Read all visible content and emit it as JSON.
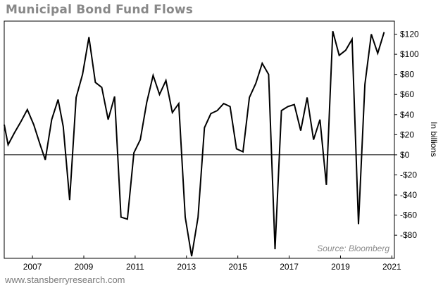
{
  "chart_data": {
    "type": "line",
    "title": "Municipal Bond Fund Flows",
    "ylabel": "In billions",
    "source": "Source: Bloomberg",
    "footer": "www.stansberryresearch.com",
    "xlim": [
      2005.9,
      2021.1
    ],
    "ylim": [
      -103,
      133
    ],
    "grid": false,
    "legend": "none",
    "line_color": "#000000",
    "x_ticks": [
      {
        "value": 2007,
        "label": "2007"
      },
      {
        "value": 2009,
        "label": "2009"
      },
      {
        "value": 2011,
        "label": "2011"
      },
      {
        "value": 2013,
        "label": "2013"
      },
      {
        "value": 2015,
        "label": "2015"
      },
      {
        "value": 2017,
        "label": "2017"
      },
      {
        "value": 2019,
        "label": "2019"
      },
      {
        "value": 2021,
        "label": "2021"
      }
    ],
    "y_ticks": [
      {
        "value": 120,
        "label": "$120"
      },
      {
        "value": 100,
        "label": "$100"
      },
      {
        "value": 80,
        "label": "$80"
      },
      {
        "value": 60,
        "label": "$60"
      },
      {
        "value": 40,
        "label": "$40"
      },
      {
        "value": 20,
        "label": "$20"
      },
      {
        "value": 0,
        "label": "$0"
      },
      {
        "value": -20,
        "label": "-$20"
      },
      {
        "value": -40,
        "label": "-$40"
      },
      {
        "value": -60,
        "label": "-$60"
      },
      {
        "value": -80,
        "label": "-$80"
      }
    ],
    "series": [
      {
        "points": [
          [
            2005.9,
            30
          ],
          [
            2006.05,
            10
          ],
          [
            2006.3,
            22
          ],
          [
            2006.55,
            33
          ],
          [
            2006.8,
            45
          ],
          [
            2007.05,
            30
          ],
          [
            2007.3,
            10
          ],
          [
            2007.5,
            -5
          ],
          [
            2007.75,
            35
          ],
          [
            2008.0,
            55
          ],
          [
            2008.2,
            28
          ],
          [
            2008.45,
            -45
          ],
          [
            2008.7,
            57
          ],
          [
            2008.95,
            80
          ],
          [
            2009.2,
            117
          ],
          [
            2009.45,
            72
          ],
          [
            2009.7,
            67
          ],
          [
            2009.95,
            35
          ],
          [
            2010.2,
            58
          ],
          [
            2010.45,
            -62
          ],
          [
            2010.7,
            -64
          ],
          [
            2010.95,
            2
          ],
          [
            2011.2,
            15
          ],
          [
            2011.45,
            52
          ],
          [
            2011.7,
            79
          ],
          [
            2011.95,
            60
          ],
          [
            2012.2,
            74
          ],
          [
            2012.45,
            42
          ],
          [
            2012.7,
            51
          ],
          [
            2012.95,
            -62
          ],
          [
            2013.2,
            -101
          ],
          [
            2013.45,
            -62
          ],
          [
            2013.7,
            27
          ],
          [
            2013.95,
            41
          ],
          [
            2014.2,
            44
          ],
          [
            2014.45,
            51
          ],
          [
            2014.7,
            48
          ],
          [
            2014.95,
            6
          ],
          [
            2015.2,
            3
          ],
          [
            2015.45,
            57
          ],
          [
            2015.7,
            71
          ],
          [
            2015.95,
            91
          ],
          [
            2016.2,
            80
          ],
          [
            2016.45,
            -94
          ],
          [
            2016.7,
            44
          ],
          [
            2016.95,
            48
          ],
          [
            2017.2,
            50
          ],
          [
            2017.45,
            24
          ],
          [
            2017.7,
            57
          ],
          [
            2017.95,
            15
          ],
          [
            2018.2,
            35
          ],
          [
            2018.45,
            -30
          ],
          [
            2018.7,
            123
          ],
          [
            2018.95,
            99
          ],
          [
            2019.2,
            104
          ],
          [
            2019.45,
            115
          ],
          [
            2019.7,
            -69
          ],
          [
            2019.95,
            70
          ],
          [
            2020.2,
            120
          ],
          [
            2020.45,
            101
          ],
          [
            2020.7,
            122
          ]
        ]
      }
    ]
  }
}
